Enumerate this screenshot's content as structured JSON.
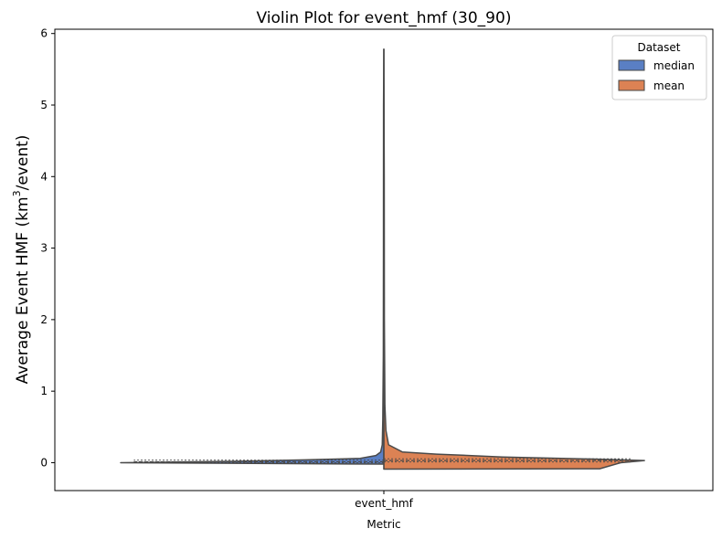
{
  "chart_data": {
    "type": "violin",
    "title": "Violin Plot for event_hmf (30_90)",
    "xlabel": "Metric",
    "ylabel": "Average Event HMF (km",
    "ylabel_sup": "3",
    "ylabel_tail": "/event)",
    "categories": [
      "event_hmf"
    ],
    "ylim": [
      -0.39,
      6.06
    ],
    "yticks": [
      0,
      1,
      2,
      3,
      4,
      5,
      6
    ],
    "grid": false,
    "legend": {
      "title": "Dataset",
      "placement": "top-right",
      "entries": [
        "median",
        "mean"
      ]
    },
    "series": [
      {
        "name": "median",
        "color": "#5a7fc4",
        "side": "left",
        "profile": [
          {
            "y": -0.02,
            "w": 0.0
          },
          {
            "y": 0.0,
            "w": 1.0
          },
          {
            "y": 0.02,
            "w": 0.55
          },
          {
            "y": 0.04,
            "w": 0.3
          },
          {
            "y": 0.06,
            "w": 0.09
          },
          {
            "y": 0.1,
            "w": 0.03
          },
          {
            "y": 0.15,
            "w": 0.012
          },
          {
            "y": 0.25,
            "w": 0.006
          },
          {
            "y": 0.6,
            "w": 0.004
          },
          {
            "y": 1.5,
            "w": 0.002
          },
          {
            "y": 3.0,
            "w": 0.0015
          },
          {
            "y": 5.0,
            "w": 0.0012
          },
          {
            "y": 5.78,
            "w": 0.0
          }
        ],
        "quartiles": [
          0.0,
          0.012,
          0.035
        ]
      },
      {
        "name": "mean",
        "color": "#dc8254",
        "side": "right",
        "profile": [
          {
            "y": -0.09,
            "w": 0.0
          },
          {
            "y": -0.085,
            "w": 0.82
          },
          {
            "y": 0.0,
            "w": 0.9
          },
          {
            "y": 0.03,
            "w": 0.99
          },
          {
            "y": 0.05,
            "w": 0.8
          },
          {
            "y": 0.08,
            "w": 0.45
          },
          {
            "y": 0.12,
            "w": 0.2
          },
          {
            "y": 0.15,
            "w": 0.07
          },
          {
            "y": 0.25,
            "w": 0.018
          },
          {
            "y": 0.45,
            "w": 0.008
          },
          {
            "y": 0.8,
            "w": 0.004
          },
          {
            "y": 2.0,
            "w": 0.002
          },
          {
            "y": 4.0,
            "w": 0.0015
          },
          {
            "y": 5.78,
            "w": 0.0
          }
        ],
        "quartiles": [
          0.01,
          0.03,
          0.055
        ]
      }
    ]
  }
}
